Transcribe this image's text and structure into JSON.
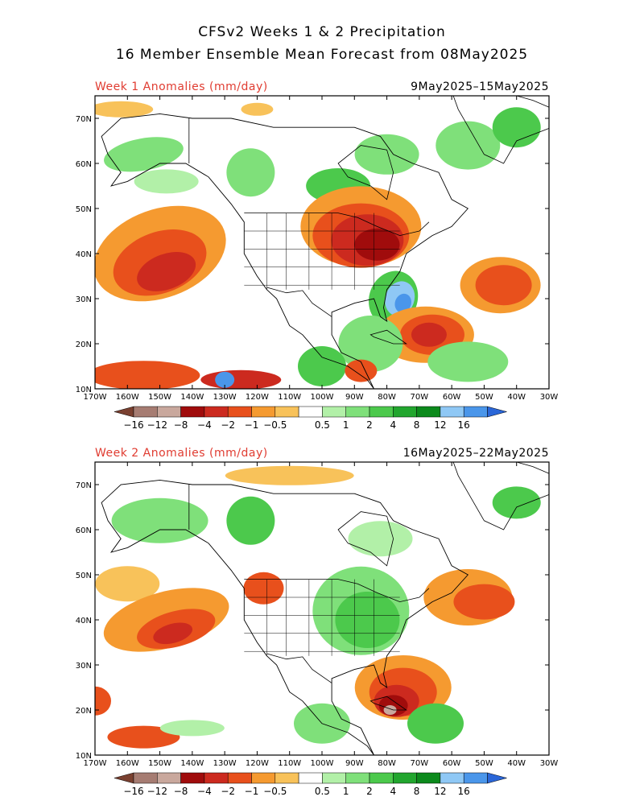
{
  "header": {
    "title_line1": "CFSv2 Weeks 1 & 2 Precipitation",
    "title_line2": "16 Member Ensemble Mean Forecast from 08May2025"
  },
  "panels": [
    {
      "label": "Week 1 Anomalies (mm/day)",
      "dates": "9May2025–15May2025"
    },
    {
      "label": "Week 2 Anomalies (mm/day)",
      "dates": "16May2025–22May2025"
    }
  ],
  "axes": {
    "lon_labels": [
      "170W",
      "160W",
      "150W",
      "140W",
      "130W",
      "120W",
      "110W",
      "100W",
      "90W",
      "80W",
      "70W",
      "60W",
      "50W",
      "40W",
      "30W"
    ],
    "lat_labels": [
      "10N",
      "20N",
      "30N",
      "40N",
      "50N",
      "60N",
      "70N"
    ]
  },
  "colorbar": {
    "labels": [
      "−16",
      "−12",
      "−8",
      "−4",
      "−2",
      "−1",
      "−0.5",
      "0.5",
      "1",
      "2",
      "4",
      "8",
      "12",
      "16"
    ],
    "colors": [
      "#7a4030",
      "#a67c72",
      "#c9a89d",
      "#a00c0c",
      "#cc2a1f",
      "#e8501c",
      "#f59a30",
      "#f8c25a",
      "#ffffff",
      "#b2f0a8",
      "#7fe07a",
      "#4cc94c",
      "#22a62e",
      "#0c8a1c",
      "#8fc8f5",
      "#4a96ea",
      "#2a66d8"
    ]
  },
  "anomaly_colors": {
    "dry_strong": "#a00c0c",
    "dry": "#cc2a1f",
    "dry_mod": "#e8501c",
    "dry_weak": "#f59a30",
    "dry_light": "#f8c25a",
    "wet_light": "#b2f0a8",
    "wet_weak": "#7fe07a",
    "wet": "#4cc94c",
    "wet_strong": "#22a62e",
    "wet_xstrong": "#0c8a1c",
    "blue_light": "#8fc8f5",
    "blue": "#4a96ea",
    "brown": "#c9a89d"
  }
}
